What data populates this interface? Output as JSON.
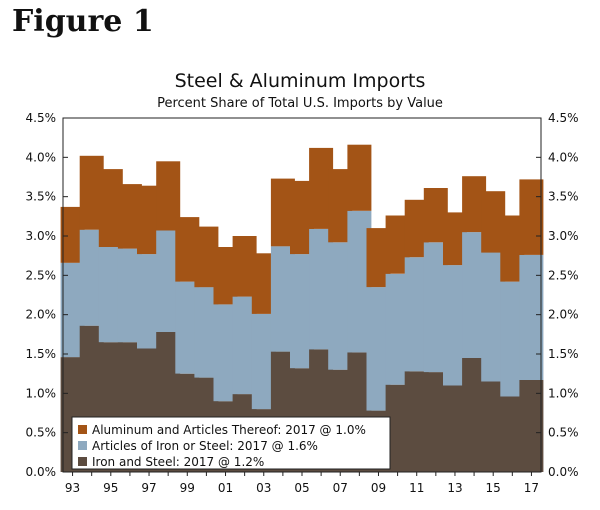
{
  "figure_label": "Figure 1",
  "chart_data": {
    "type": "bar",
    "stacked": true,
    "title": "Steel & Aluminum Imports",
    "subtitle": "Percent Share of Total U.S. Imports by Value",
    "categories": [
      "93",
      "94",
      "95",
      "96",
      "97",
      "98",
      "99",
      "00",
      "01",
      "02",
      "03",
      "04",
      "05",
      "06",
      "07",
      "08",
      "09",
      "10",
      "11",
      "12",
      "13",
      "14",
      "15",
      "16",
      "17"
    ],
    "x_tick_labels": [
      "93",
      "",
      "95",
      "",
      "97",
      "",
      "99",
      "",
      "01",
      "",
      "03",
      "",
      "05",
      "",
      "07",
      "",
      "09",
      "",
      "11",
      "",
      "13",
      "",
      "15",
      "",
      "17"
    ],
    "ylim": [
      0,
      4.5
    ],
    "y_ticks": [
      "0.0%",
      "0.5%",
      "1.0%",
      "1.5%",
      "2.0%",
      "2.5%",
      "3.0%",
      "3.5%",
      "4.0%",
      "4.5%"
    ],
    "y_tick_values": [
      0,
      0.5,
      1.0,
      1.5,
      2.0,
      2.5,
      3.0,
      3.5,
      4.0,
      4.5
    ],
    "series": [
      {
        "name": "Iron and Steel",
        "legend": "Iron and Steel: 2017 @ 1.2%",
        "color": "#5c4c40",
        "values": [
          1.46,
          1.86,
          1.65,
          1.65,
          1.57,
          1.78,
          1.25,
          1.2,
          0.9,
          0.99,
          0.8,
          1.53,
          1.32,
          1.56,
          1.3,
          1.52,
          0.78,
          1.11,
          1.28,
          1.27,
          1.1,
          1.45,
          1.15,
          0.96,
          1.17
        ]
      },
      {
        "name": "Articles of Iron or Steel",
        "legend": "Articles of Iron or Steel: 2017 @ 1.6%",
        "color": "#8ea9bf",
        "values": [
          1.2,
          1.22,
          1.21,
          1.19,
          1.2,
          1.29,
          1.17,
          1.15,
          1.23,
          1.24,
          1.21,
          1.34,
          1.45,
          1.53,
          1.62,
          1.8,
          1.57,
          1.41,
          1.45,
          1.65,
          1.53,
          1.6,
          1.64,
          1.46,
          1.59
        ]
      },
      {
        "name": "Aluminum and Articles Thereof",
        "legend": "Aluminum and Articles Thereof: 2017 @ 1.0%",
        "color": "#a35416",
        "values": [
          0.71,
          0.94,
          0.99,
          0.82,
          0.87,
          0.88,
          0.82,
          0.77,
          0.73,
          0.77,
          0.77,
          0.86,
          0.93,
          1.03,
          0.93,
          0.84,
          0.75,
          0.74,
          0.73,
          0.69,
          0.67,
          0.71,
          0.78,
          0.84,
          0.96
        ]
      }
    ]
  }
}
